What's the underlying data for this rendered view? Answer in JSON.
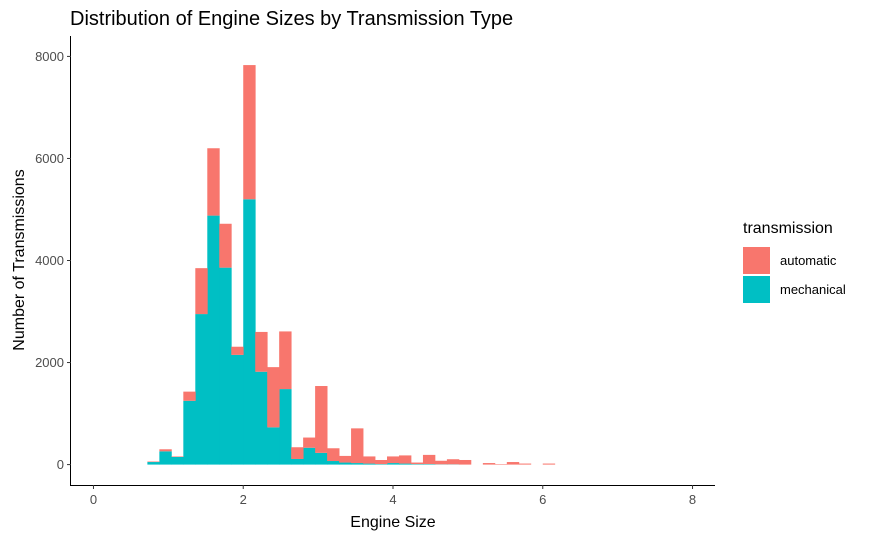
{
  "chart_data": {
    "type": "bar",
    "title": "Distribution of Engine Sizes by Transmission Type",
    "xlabel": "Engine Size",
    "ylabel": "Number of Transmissions",
    "xlim": [
      -0.3,
      8.3
    ],
    "ylim": [
      -400,
      8400
    ],
    "x_ticks": [
      0,
      2,
      4,
      6,
      8
    ],
    "y_ticks": [
      0,
      2000,
      4000,
      6000,
      8000
    ],
    "bin_width": 0.16,
    "stacked": true,
    "legend_title": "transmission",
    "legend_position": "right",
    "grid": false,
    "colors": {
      "automatic": "#F8766D",
      "mechanical": "#00BFC4"
    },
    "bins": [
      0.8,
      0.96,
      1.12,
      1.28,
      1.44,
      1.6,
      1.76,
      1.92,
      2.08,
      2.24,
      2.4,
      2.56,
      2.72,
      2.88,
      3.04,
      3.2,
      3.36,
      3.52,
      3.68,
      3.84,
      4.0,
      4.16,
      4.32,
      4.48,
      4.64,
      4.8,
      4.96,
      5.12,
      5.28,
      5.44,
      5.6,
      5.76,
      5.92,
      6.08
    ],
    "series": [
      {
        "name": "mechanical",
        "values": [
          50,
          260,
          150,
          1250,
          2950,
          4880,
          3860,
          2150,
          5200,
          1820,
          730,
          1480,
          110,
          330,
          230,
          70,
          40,
          30,
          20,
          10,
          30,
          20,
          10,
          10,
          5,
          5,
          0,
          0,
          0,
          0,
          0,
          0,
          0,
          0
        ]
      },
      {
        "name": "automatic",
        "values": [
          10,
          40,
          10,
          180,
          900,
          1320,
          860,
          160,
          2630,
          780,
          1180,
          1130,
          230,
          200,
          1310,
          250,
          130,
          680,
          140,
          80,
          130,
          160,
          30,
          180,
          70,
          100,
          90,
          0,
          30,
          10,
          50,
          20,
          0,
          20
        ]
      }
    ]
  }
}
